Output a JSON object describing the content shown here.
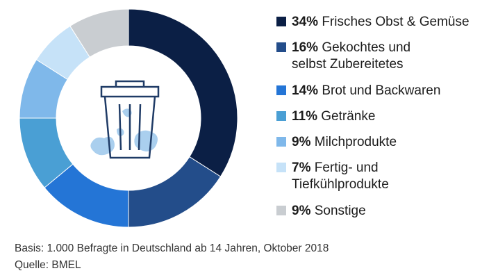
{
  "chart_data": {
    "type": "pie",
    "variant": "donut",
    "title": "",
    "categories": [
      "Frisches Obst & Gemüse",
      "Gekochtes und selbst Zubereitetes",
      "Brot und Backwaren",
      "Getränke",
      "Milchprodukte",
      "Fertig- und Tiefkühlprodukte",
      "Sonstige"
    ],
    "values": [
      34,
      16,
      14,
      11,
      9,
      7,
      9
    ],
    "unit": "%",
    "colors": [
      "#0b1f45",
      "#234d8a",
      "#2475d6",
      "#4a9fd4",
      "#7fb8ea",
      "#c6e2f8",
      "#c9cdd1"
    ],
    "legend_position": "right",
    "center_icon": "trash-can-icon"
  },
  "legend": [
    {
      "pct": "34%",
      "lines": [
        "Frisches Obst & Gemüse"
      ]
    },
    {
      "pct": "16%",
      "lines": [
        "Gekochtes und",
        "selbst Zubereitetes"
      ]
    },
    {
      "pct": "14%",
      "lines": [
        "Brot und Backwaren"
      ]
    },
    {
      "pct": "11%",
      "lines": [
        "Getränke"
      ]
    },
    {
      "pct": "9%",
      "lines": [
        "Milchprodukte"
      ]
    },
    {
      "pct": "7%",
      "lines": [
        "Fertig- und",
        "Tiefkühlprodukte"
      ]
    },
    {
      "pct": "9%",
      "lines": [
        "Sonstige"
      ]
    }
  ],
  "footer": {
    "basis": "Basis: 1.000 Befragte in Deutschland ab 14 Jahren, Oktober 2018",
    "source": "Quelle: BMEL"
  }
}
